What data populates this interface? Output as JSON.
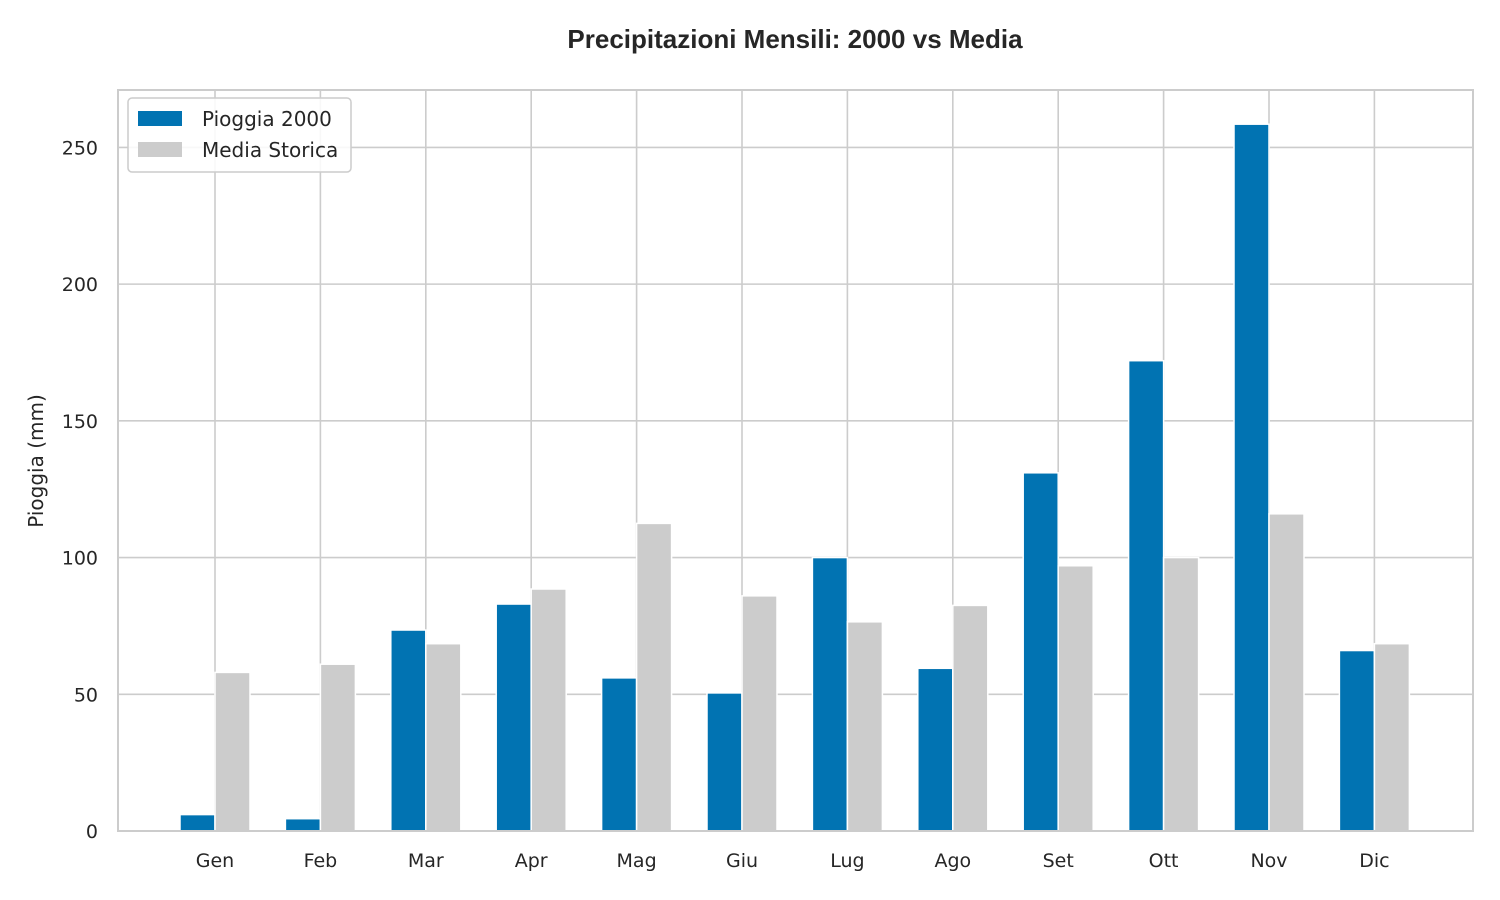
{
  "chart_data": {
    "type": "bar",
    "title": "Precipitazioni Mensili: 2000 vs Media",
    "xlabel": "",
    "ylabel": "Pioggia (mm)",
    "categories": [
      "Gen",
      "Feb",
      "Mar",
      "Apr",
      "Mag",
      "Giu",
      "Lug",
      "Ago",
      "Set",
      "Ott",
      "Nov",
      "Dic"
    ],
    "series": [
      {
        "name": "Pioggia 2000",
        "color": "#0173b2",
        "values": [
          6,
          4.5,
          73.5,
          83,
          56,
          50.5,
          100,
          59.5,
          131,
          172,
          258.5,
          66
        ]
      },
      {
        "name": "Media Storica",
        "color": "#cccccc",
        "values": [
          58,
          61,
          68.5,
          88.5,
          112.5,
          86,
          76.5,
          82.5,
          97,
          100,
          116,
          68.5
        ]
      }
    ],
    "ylim": [
      0,
      271
    ],
    "yticks": [
      0,
      50,
      100,
      150,
      200,
      250
    ],
    "grid": true,
    "legend_position": "top-left"
  }
}
